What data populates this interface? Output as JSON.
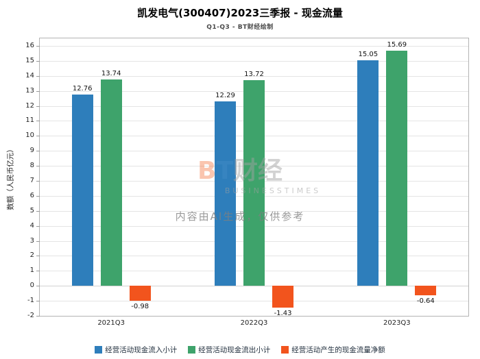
{
  "title": "凯发电气(300407)2023三季报 - 现金流量",
  "subtitle": "Q1-Q3 - BT财经绘制",
  "watermark": {
    "logo_b": "B",
    "logo_t": "T",
    "logo_cn": "财经",
    "logo_sub": "BUSINESSTIMES",
    "ai_note": "内容由AI生成，仅供参考"
  },
  "chart_data": {
    "type": "bar",
    "title": "凯发电气(300407)2023三季报 - 现金流量",
    "subtitle": "Q1-Q3 - BT财经绘制",
    "categories": [
      "2021Q3",
      "2022Q3",
      "2023Q3"
    ],
    "series": [
      {
        "name": "经营活动现金流入小计",
        "color": "#2E7EBB",
        "values": [
          12.76,
          12.29,
          15.05
        ]
      },
      {
        "name": "经营活动现金流出小计",
        "color": "#3EA36B",
        "values": [
          13.74,
          13.72,
          15.69
        ]
      },
      {
        "name": "经营活动产生的现金流量净额",
        "color": "#F2541D",
        "values": [
          -0.98,
          -1.43,
          -0.64
        ]
      }
    ],
    "xlabel": "",
    "ylabel": "数额（人民币亿元）",
    "ylim": [
      -2,
      16
    ],
    "ytick_step": 1,
    "grid": true,
    "legend_position": "bottom"
  }
}
